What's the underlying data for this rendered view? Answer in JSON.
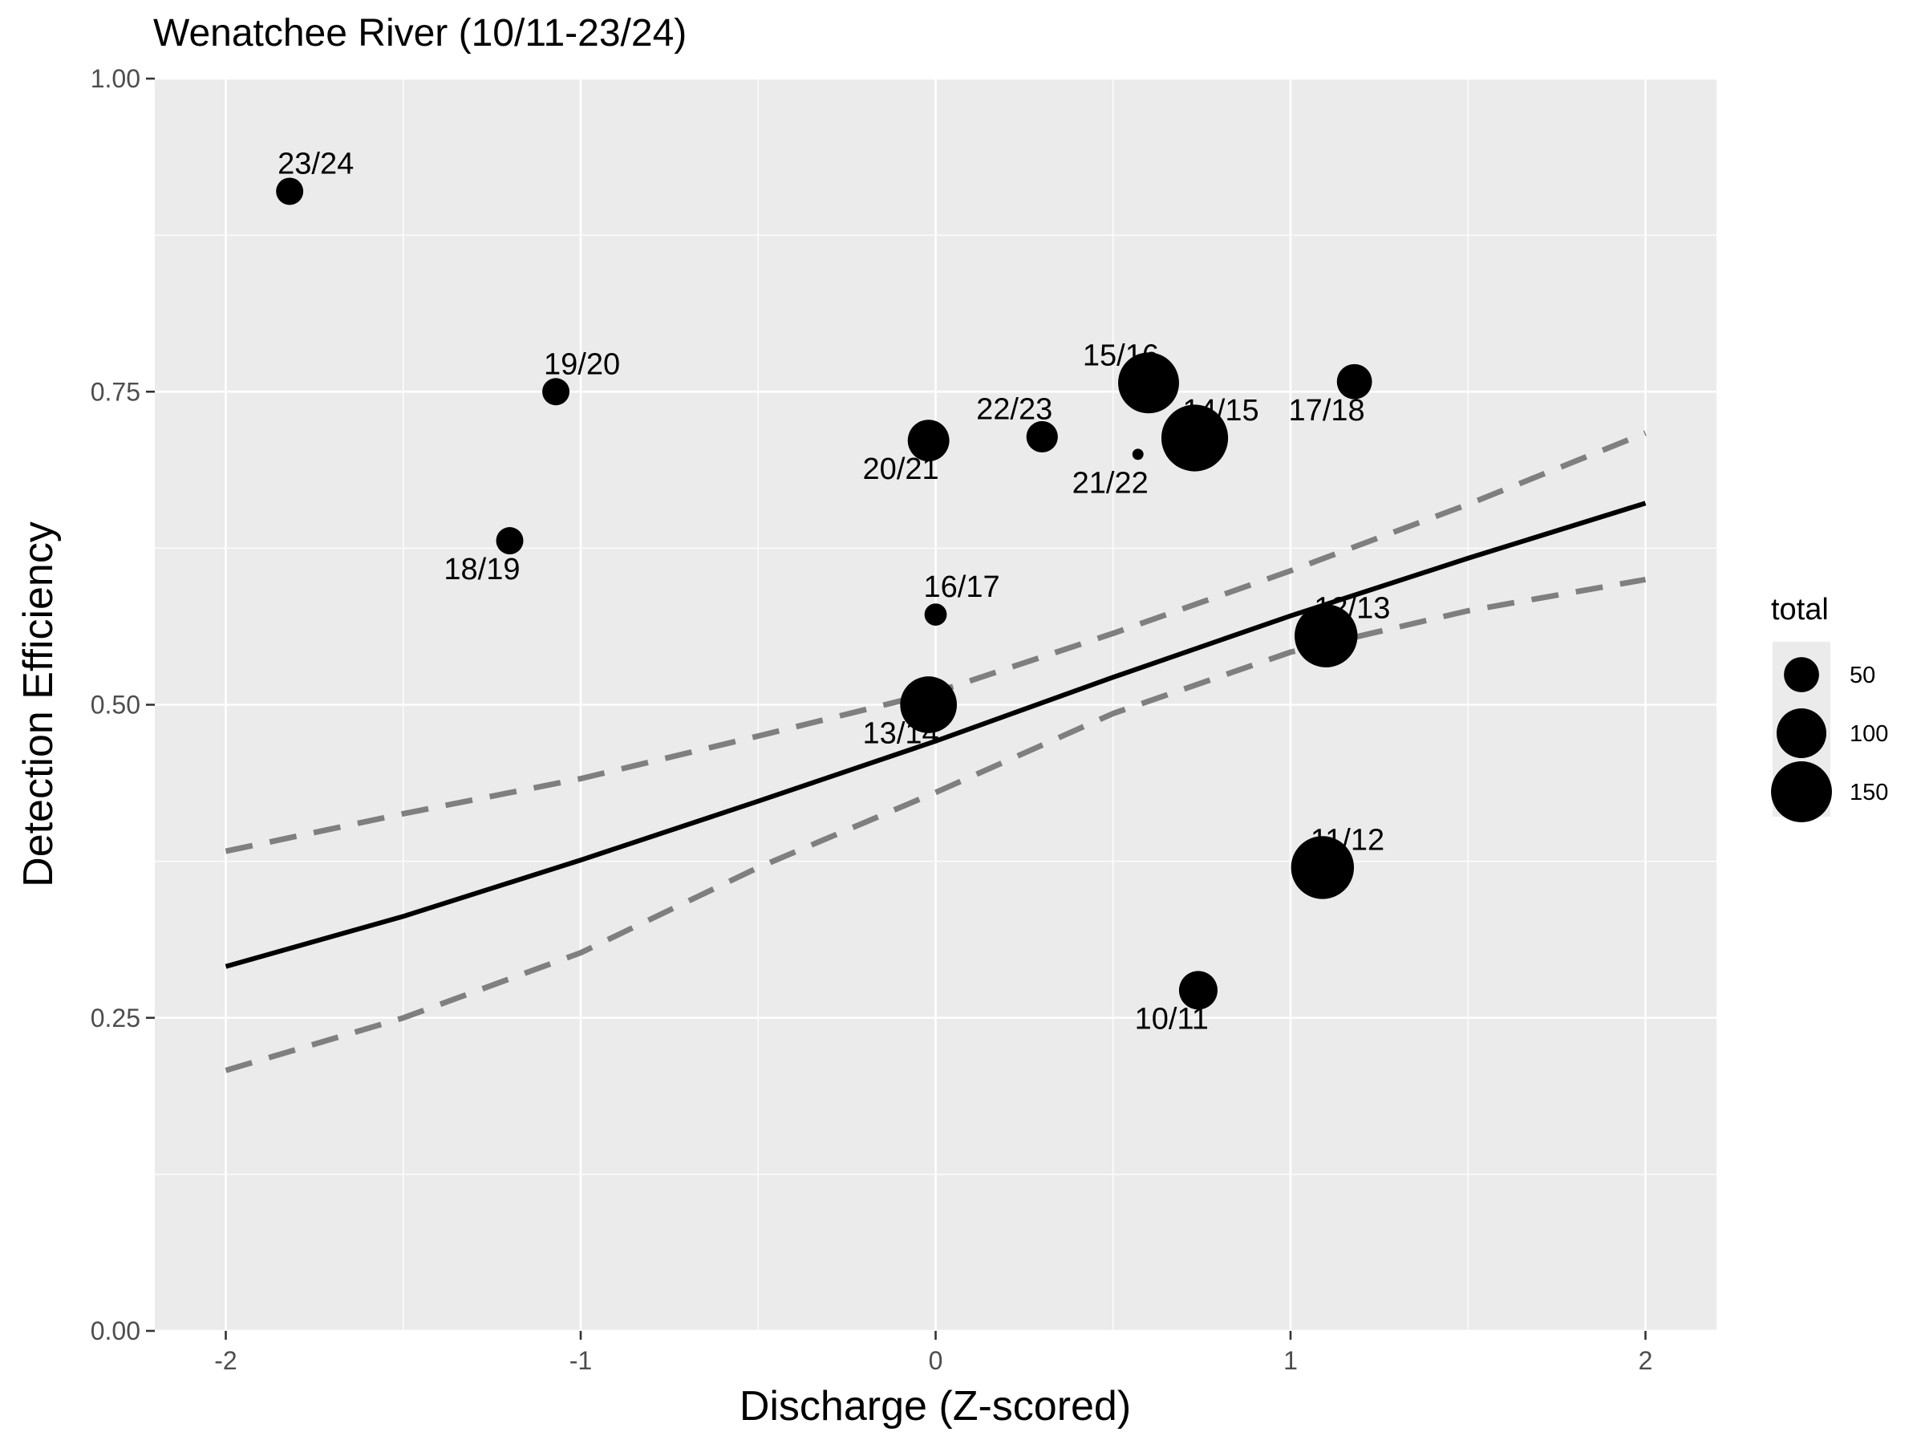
{
  "chart_data": {
    "type": "scatter",
    "title": "Wenatchee River (10/11-23/24)",
    "xlabel": "Discharge (Z-scored)",
    "ylabel": "Detection Efficiency",
    "xlim": [
      -2.2,
      2.2
    ],
    "ylim": [
      0,
      1
    ],
    "xticks": [
      -2,
      -1,
      0,
      1,
      2
    ],
    "xtick_labels": [
      "-2",
      "-1",
      "0",
      "1",
      "2"
    ],
    "yticks": [
      0,
      0.25,
      0.5,
      0.75,
      1
    ],
    "ytick_labels": [
      "0.00",
      "0.25",
      "0.50",
      "0.75",
      "1.00"
    ],
    "grid": true,
    "background": "#ebebeb",
    "points": [
      {
        "label": "10/11",
        "x": 0.74,
        "y": 0.272,
        "total": 60,
        "label_pos": "below-left"
      },
      {
        "label": "11/12",
        "x": 1.09,
        "y": 0.37,
        "total": 160,
        "label_pos": "above-right"
      },
      {
        "label": "12/13",
        "x": 1.1,
        "y": 0.555,
        "total": 160,
        "label_pos": "above-right"
      },
      {
        "label": "13/14",
        "x": -0.02,
        "y": 0.5,
        "total": 130,
        "label_pos": "below-left"
      },
      {
        "label": "14/15",
        "x": 0.73,
        "y": 0.713,
        "total": 180,
        "label_pos": "above-right"
      },
      {
        "label": "15/16",
        "x": 0.6,
        "y": 0.757,
        "total": 150,
        "label_pos": "above-left"
      },
      {
        "label": "16/17",
        "x": 0.0,
        "y": 0.572,
        "total": 20,
        "label_pos": "above-right"
      },
      {
        "label": "17/18",
        "x": 1.18,
        "y": 0.758,
        "total": 50,
        "label_pos": "below-left"
      },
      {
        "label": "18/19",
        "x": -1.2,
        "y": 0.631,
        "total": 30,
        "label_pos": "below-left"
      },
      {
        "label": "19/20",
        "x": -1.07,
        "y": 0.75,
        "total": 30,
        "label_pos": "above-right"
      },
      {
        "label": "20/21",
        "x": -0.02,
        "y": 0.711,
        "total": 70,
        "label_pos": "below-left"
      },
      {
        "label": "21/22",
        "x": 0.57,
        "y": 0.7,
        "total": 5,
        "label_pos": "below-left"
      },
      {
        "label": "22/23",
        "x": 0.3,
        "y": 0.714,
        "total": 40,
        "label_pos": "above-left"
      },
      {
        "label": "23/24",
        "x": -1.82,
        "y": 0.91,
        "total": 30,
        "label_pos": "above-right"
      }
    ],
    "fit_line": {
      "x": [
        -2.0,
        -1.5,
        -1.0,
        -0.5,
        0.0,
        0.5,
        1.0,
        1.5,
        2.0
      ],
      "y": [
        0.291,
        0.331,
        0.376,
        0.423,
        0.471,
        0.522,
        0.571,
        0.617,
        0.661
      ],
      "color": "#000000"
    },
    "ci_upper": {
      "x": [
        -2.0,
        -1.5,
        -1.0,
        -0.5,
        0.0,
        0.5,
        1.0,
        1.5,
        2.0
      ],
      "y": [
        0.383,
        0.413,
        0.441,
        0.475,
        0.51,
        0.557,
        0.607,
        0.66,
        0.717
      ],
      "color": "#7f7f7f"
    },
    "ci_lower": {
      "x": [
        -2.0,
        -1.5,
        -1.0,
        -0.5,
        0.0,
        0.5,
        1.0,
        1.5,
        2.0
      ],
      "y": [
        0.208,
        0.25,
        0.302,
        0.37,
        0.43,
        0.493,
        0.542,
        0.575,
        0.6
      ],
      "color": "#7f7f7f"
    },
    "legend": {
      "title": "total",
      "placement": "right",
      "entries": [
        {
          "label": "50",
          "value": 50
        },
        {
          "label": "100",
          "value": 100
        },
        {
          "label": "150",
          "value": 150
        }
      ]
    }
  }
}
